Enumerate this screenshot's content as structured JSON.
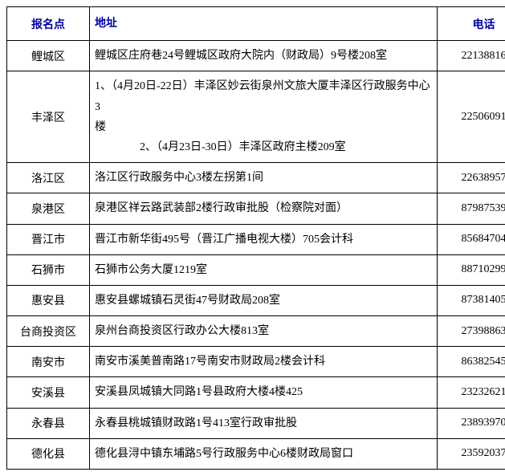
{
  "headers": {
    "location": "报名点",
    "address": "地址",
    "phone": "电话"
  },
  "rows": [
    {
      "location": "鲤城区",
      "address": "鲤城区庄府巷24号鲤城区政府大院内（财政局）9号楼208室",
      "phone": "22138816"
    },
    {
      "location": "丰泽区",
      "address": "1、（4月20日-22日）丰泽区妙云街泉州文旅大厦丰泽区行政服务中心3\n楼\n　　　　2、（4月23日-30日）丰泽区政府主楼209室",
      "phone": "22506091"
    },
    {
      "location": "洛江区",
      "address": "洛江区行政服务中心3楼左拐第1间",
      "phone": "22638957"
    },
    {
      "location": "泉港区",
      "address": "泉港区祥云路武装部2楼行政审批股（检察院对面）",
      "phone": "87987539"
    },
    {
      "location": "晋江市",
      "address": "晋江市新华街495号（晋江广播电视大楼）705会计科",
      "phone": "85684704"
    },
    {
      "location": "石狮市",
      "address": "石狮市公务大厦1219室",
      "phone": "88710299"
    },
    {
      "location": "惠安县",
      "address": "惠安县螺城镇石灵街47号财政局208室",
      "phone": "87381405"
    },
    {
      "location": "台商投资区",
      "address": "泉州台商投资区行政办公大楼813室",
      "phone": "27398863"
    },
    {
      "location": "南安市",
      "address": "南安市溪美普南路17号南安市财政局2楼会计科",
      "phone": "86382545"
    },
    {
      "location": "安溪县",
      "address": "安溪县凤城镇大同路1号县政府大楼4楼425",
      "phone": "23232621"
    },
    {
      "location": "永春县",
      "address": "永春县桃城镇财政路1号413室行政审批股",
      "phone": "23893970"
    },
    {
      "location": "德化县",
      "address": "德化县浔中镇东埔路5号行政服务中心6楼财政局窗口",
      "phone": "23592037"
    }
  ]
}
